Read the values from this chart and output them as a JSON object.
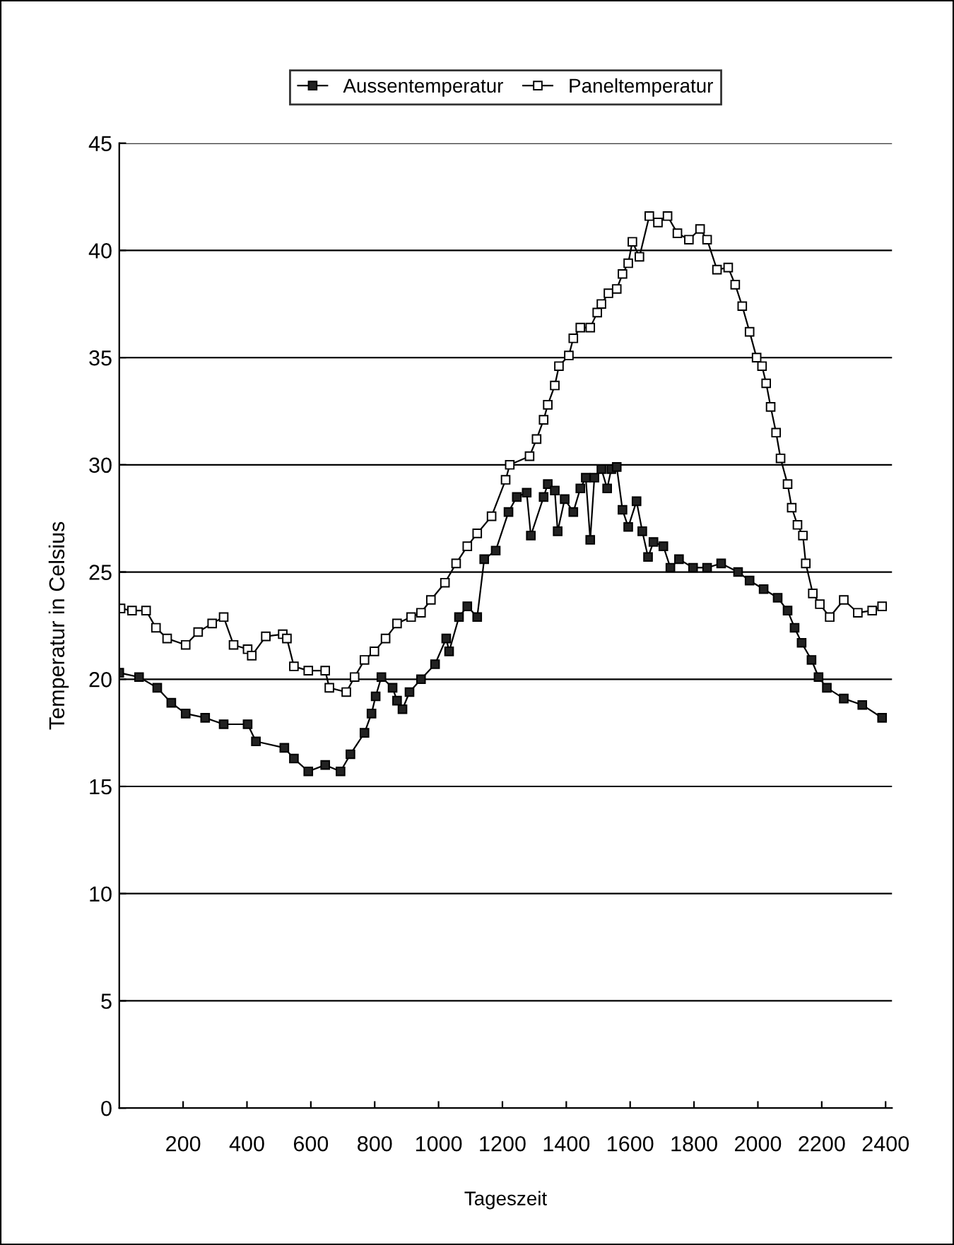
{
  "chart_data": {
    "type": "line",
    "xlabel": "Tageszeit",
    "ylabel": "Temperatur in Celsius",
    "xlim": [
      0,
      2420
    ],
    "xticks": [
      200,
      400,
      600,
      800,
      1000,
      1200,
      1400,
      1600,
      1800,
      2000,
      2200,
      2400
    ],
    "ylim": [
      0,
      45
    ],
    "yticks": [
      0,
      5,
      10,
      15,
      20,
      25,
      30,
      35,
      40,
      45
    ],
    "grid": "y",
    "legend": "top",
    "marker": "square",
    "line_style": "solid",
    "series": [
      {
        "name": "Aussentemperatur",
        "color": "#222222",
        "x": [
          0,
          62,
          119,
          163,
          208,
          269,
          327,
          402,
          428,
          517,
          547,
          592,
          645,
          693,
          724,
          768,
          790,
          803,
          821,
          856,
          870,
          887,
          909,
          945,
          989,
          1024,
          1033,
          1064,
          1090,
          1121,
          1143,
          1179,
          1219,
          1245,
          1276,
          1289,
          1329,
          1342,
          1364,
          1373,
          1395,
          1422,
          1444,
          1461,
          1475,
          1488,
          1510,
          1528,
          1541,
          1558,
          1576,
          1594,
          1620,
          1638,
          1656,
          1673,
          1704,
          1726,
          1753,
          1797,
          1841,
          1885,
          1938,
          1974,
          2018,
          2062,
          2093,
          2115,
          2137,
          2168,
          2190,
          2216,
          2269,
          2327,
          2389
        ],
        "values": [
          20.3,
          20.1,
          19.6,
          18.9,
          18.4,
          18.2,
          17.9,
          17.9,
          17.1,
          16.8,
          16.3,
          15.7,
          16.0,
          15.7,
          16.5,
          17.5,
          18.4,
          19.2,
          20.1,
          19.6,
          19.0,
          18.6,
          19.4,
          20.0,
          20.7,
          21.9,
          21.3,
          22.9,
          23.4,
          22.9,
          25.6,
          26.0,
          27.8,
          28.5,
          28.7,
          26.7,
          28.5,
          29.1,
          28.8,
          26.9,
          28.4,
          27.8,
          28.9,
          29.4,
          26.5,
          29.4,
          29.8,
          28.9,
          29.8,
          29.9,
          27.9,
          27.1,
          28.3,
          26.9,
          25.7,
          26.4,
          26.2,
          25.2,
          25.6,
          25.2,
          25.2,
          25.4,
          25.0,
          24.6,
          24.2,
          23.8,
          23.2,
          22.4,
          21.7,
          20.9,
          20.1,
          19.6,
          19.1,
          18.8,
          18.2
        ]
      },
      {
        "name": "Paneltemperatur",
        "color": "#ffffff",
        "x": [
          4,
          40,
          84,
          115,
          150,
          208,
          247,
          291,
          327,
          358,
          402,
          415,
          459,
          512,
          525,
          547,
          592,
          645,
          658,
          711,
          737,
          768,
          799,
          834,
          870,
          914,
          945,
          976,
          1020,
          1055,
          1090,
          1121,
          1166,
          1210,
          1223,
          1285,
          1307,
          1329,
          1342,
          1364,
          1377,
          1408,
          1422,
          1444,
          1475,
          1497,
          1510,
          1532,
          1558,
          1576,
          1594,
          1607,
          1629,
          1660,
          1687,
          1717,
          1748,
          1784,
          1819,
          1841,
          1872,
          1907,
          1929,
          1951,
          1974,
          1996,
          2013,
          2026,
          2040,
          2057,
          2071,
          2093,
          2106,
          2124,
          2141,
          2150,
          2172,
          2194,
          2225,
          2269,
          2313,
          2358,
          2389
        ],
        "values": [
          23.3,
          23.2,
          23.2,
          22.4,
          21.9,
          21.6,
          22.2,
          22.6,
          22.9,
          21.6,
          21.4,
          21.1,
          22.0,
          22.1,
          21.9,
          20.6,
          20.4,
          20.4,
          19.6,
          19.4,
          20.1,
          20.9,
          21.3,
          21.9,
          22.6,
          22.9,
          23.1,
          23.7,
          24.5,
          25.4,
          26.2,
          26.8,
          27.6,
          29.3,
          30.0,
          30.4,
          31.2,
          32.1,
          32.8,
          33.7,
          34.6,
          35.1,
          35.9,
          36.4,
          36.4,
          37.1,
          37.5,
          38.0,
          38.2,
          38.9,
          39.4,
          40.4,
          39.7,
          41.6,
          41.3,
          41.6,
          40.8,
          40.5,
          41.0,
          40.5,
          39.1,
          39.2,
          38.4,
          37.4,
          36.2,
          35.0,
          34.6,
          33.8,
          32.7,
          31.5,
          30.3,
          29.1,
          28.0,
          27.2,
          26.7,
          25.4,
          24.0,
          23.5,
          22.9,
          23.7,
          23.1,
          23.2,
          23.4
        ]
      }
    ]
  }
}
